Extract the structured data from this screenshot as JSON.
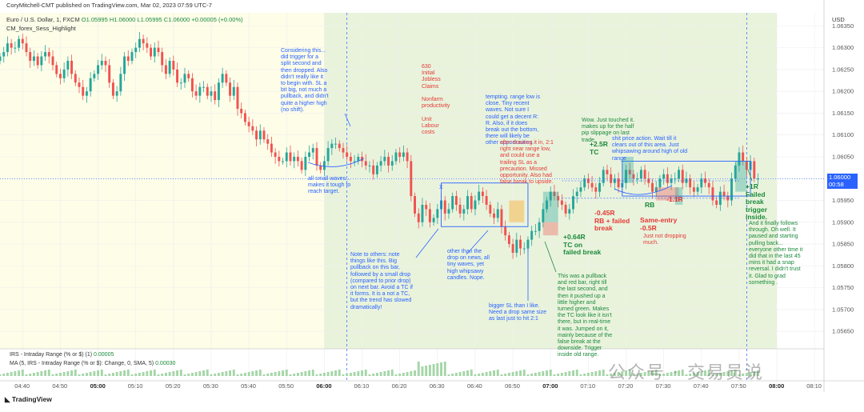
{
  "header": {
    "publisher": "CoryMitchell-CMT published on TradingView.com, Mar 02, 2023 07:59 UTC-7",
    "symbol": "Euro / U.S. Dollar, 1, FXCM",
    "ohlc": "O1.05995 H1.06000 L1.05995 C1.06000 +0.00005 (+0.00%)",
    "indicator": "CM_forex_Sess_Highlight",
    "currency": "USD"
  },
  "price_box": {
    "price": "1.06000",
    "countdown": "00:58"
  },
  "footer": {
    "logo": "TradingView",
    "watermark": "公众号 · 交易员说",
    "irs_label": "IRS - Intraday Range (% or $) (1)",
    "irs_value": "0.00005",
    "ma_label": "MA (5, IRS - Intraday Range (% or $): Change, 0, SMA, 5)",
    "ma_value": "0.00030"
  },
  "colors": {
    "up": "#26a69a",
    "down": "#ef5350",
    "session_yellow": "#fdfde8",
    "session_green": "#e9f3dc",
    "annotation_blue": "#2962ff",
    "annotation_red": "#e53935",
    "annotation_green": "#1b8a3c"
  },
  "annotations": [
    "Considering this...\ndid trigger for a\nsplit second and\nthen dropped. Also\ndidn't really like it\nto begin with. SL a\nbit big, not much a\npullback, and didn't\nquite a higher high\n(no shift).",
    "all small waves...\nmakes it tough to\nreach target.",
    "630\nInitial\nJobless\nClaims\n\nNonfarm\nproductivity\n\nUnit\nLabour\ncosts",
    "tempting. range low is\nclose. Tiny recent\nwaves. Not sure I\ncould get a decent R:\nR. Also, if it does\nbreak out the bottom,\nthere will likely be\nother opportunities.",
    "after drawing it in, 2:1\nright near range low,\nand could use a\ntrailing SL as a\nprecaution. Missed\nopportunity. Also had\nfalse break to upside.",
    "X",
    "Note to others: note\nthings like this. Big\npullback on this bar,\nfollowed by a small drop\n(compared to prior drop)\non next bar. Avoid a TC if\nit forms. It is a not a TC,\nbut the trend has slowed\ndramatically!",
    "other than the\ndrop on news, all\ntiny waves, yet\nhigh whipsawy\ncandles. Nope.",
    "bigger SL than I like.\nNeed a drop same size\nas last just to hit 2:1",
    "+0.64R\nTC on\nfailed break",
    "This was a pullback\nand red bar, right till\nthe last second, and\nthen it pushed up a\nlittle higher and\nturned green. Makes\nthe TC look like it isn't\nthere, but in real-time\nit was. Jumped on it,\nmainly because of the\nfalse break at the\ndownside. Trigger\ninside old range.",
    "Wow. Just touched it.\nmakes up for the half\npip slippage on last\ntrade.",
    "+2.5R\nTC",
    "shit price action. Wait till it\nclears out of this area. Just\nwhipsawing around high of old\nrange",
    "-0.45R\nRB + failed\nbreak",
    "RB",
    "-1.1R",
    "Same-entry\n-0.5R",
    "Just not dropping\nmuch.",
    "+1R\nFailed\nbreak\ntrigger\ninside.",
    "And it finally follows\nthrough. Oh well. It\npaused and starting\npulling back...\neveryone other time it\ndid that in the last 45\nmins it had a snap\nreversal. I didn't trust\nit. Glad to grad\nsomething ."
  ],
  "chart_data": {
    "type": "candlestick",
    "title": "Euro / U.S. Dollar, 1, FXCM",
    "xlabel": "",
    "ylabel": "",
    "ylim": [
      1.0561,
      1.0638
    ],
    "y_ticks": [
      1.0565,
      1.057,
      1.0575,
      1.058,
      1.0585,
      1.059,
      1.0595,
      1.06,
      1.0605,
      1.061,
      1.0615,
      1.062,
      1.0625,
      1.063,
      1.0635
    ],
    "x_ticks": [
      "04:40",
      "04:50",
      "05:00",
      "05:10",
      "05:20",
      "05:30",
      "05:40",
      "05:50",
      "06:00",
      "06:10",
      "06:20",
      "06:30",
      "06:40",
      "06:50",
      "07:00",
      "07:10",
      "07:20",
      "07:30",
      "07:40",
      "07:50",
      "08:00",
      "08:10"
    ],
    "x_ticks_bold": [
      "05:00",
      "06:00",
      "07:00",
      "08:00"
    ],
    "grid": true,
    "legend": "none",
    "sessions": [
      {
        "name": "pre-session",
        "start": "04:34",
        "end": "06:00",
        "color": "yellow"
      },
      {
        "name": "session",
        "start": "06:00",
        "end": "08:00",
        "color": "green"
      }
    ],
    "levels": [
      1.05995,
      1.05955
    ],
    "last_price": 1.06,
    "candles_start": "04:34",
    "candle_interval_min": 1,
    "closes": [
      1.0628,
      1.0629,
      1.0631,
      1.063,
      1.063,
      1.0632,
      1.0631,
      1.0629,
      1.0627,
      1.0628,
      1.0626,
      1.0628,
      1.0629,
      1.0628,
      1.0626,
      1.0624,
      1.0623,
      1.0625,
      1.0627,
      1.0624,
      1.0622,
      1.0621,
      1.0619,
      1.062,
      1.0623,
      1.0624,
      1.0626,
      1.0627,
      1.0626,
      1.0622,
      1.0619,
      1.062,
      1.0624,
      1.0628,
      1.0627,
      1.0629,
      1.063,
      1.0632,
      1.0631,
      1.063,
      1.0628,
      1.063,
      1.0629,
      1.0626,
      1.0624,
      1.0627,
      1.0625,
      1.0622,
      1.0622,
      1.0624,
      1.0623,
      1.062,
      1.0619,
      1.0621,
      1.0621,
      1.0619,
      1.062,
      1.0618,
      1.0622,
      1.0624,
      1.0622,
      1.0619,
      1.0621,
      1.0616,
      1.0615,
      1.0613,
      1.0612,
      1.0611,
      1.0609,
      1.0611,
      1.0609,
      1.0608,
      1.0606,
      1.0605,
      1.0604,
      1.0604,
      1.0606,
      1.0604,
      1.0605,
      1.0604,
      1.0602,
      1.0605,
      1.0606,
      1.0607,
      1.0603,
      1.0602,
      1.0604,
      1.0607,
      1.0608,
      1.0608,
      1.0607,
      1.0606,
      1.0605,
      1.0604,
      1.0604,
      1.0605,
      1.0604,
      1.0603,
      1.0603,
      1.0601,
      1.0603,
      1.0604,
      1.0605,
      1.0603,
      1.0604,
      1.0606,
      1.0605,
      1.0606,
      1.0604,
      1.0596,
      1.0592,
      1.059,
      1.0594,
      1.0593,
      1.059,
      1.0591,
      1.0593,
      1.0595,
      1.0592,
      1.0593,
      1.0596,
      1.0594,
      1.0592,
      1.0593,
      1.0596,
      1.0593,
      1.0595,
      1.0597,
      1.0596,
      1.0594,
      1.0592,
      1.0591,
      1.0593,
      1.0589,
      1.0587,
      1.0585,
      1.0583,
      1.0586,
      1.0584,
      1.0584,
      1.0586,
      1.0588,
      1.0588,
      1.059,
      1.0593,
      1.0595,
      1.0597,
      1.0596,
      1.0595,
      1.0594,
      1.0592,
      1.0593,
      1.0596,
      1.0597,
      1.0598,
      1.06,
      1.0599,
      1.0598,
      1.0597,
      1.0599,
      1.0602,
      1.0601,
      1.0599,
      1.06,
      1.0598,
      1.0599,
      1.0602,
      1.0601,
      1.06,
      1.06,
      1.0602,
      1.06,
      1.0599,
      1.0597,
      1.0598,
      1.06,
      1.0601,
      1.0599,
      1.06,
      1.06,
      1.0602,
      1.0599,
      1.06,
      1.0598,
      1.0597,
      1.0598,
      1.06,
      1.0599,
      1.0598,
      1.0595,
      1.0594,
      1.0597,
      1.0596,
      1.0595,
      1.06,
      1.0603,
      1.0606,
      1.0604,
      1.0602,
      1.0604,
      1.06,
      1.06
    ],
    "volume_profile": "IRS histogram bars under the price pane, spike near 06:30"
  }
}
